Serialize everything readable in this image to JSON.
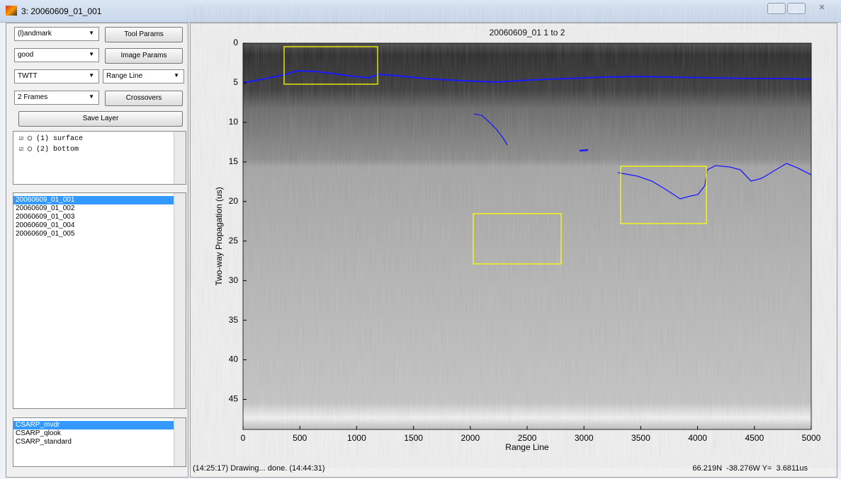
{
  "window": {
    "title": "3: 20060609_01_001"
  },
  "controls": {
    "mode": "(l)andmark",
    "quality": "good",
    "units": "TWTT",
    "frames": "2 Frames",
    "x_axis": "Range Line",
    "buttons": [
      "Tool Params",
      "Image Params",
      "Crossovers",
      "Save Layer"
    ]
  },
  "layers": [
    "(1) surface",
    "(2) bottom"
  ],
  "frame_list": [
    "20060609_01_001",
    "20060609_01_002",
    "20060609_01_003",
    "20060609_01_004",
    "20060609_01_005"
  ],
  "image_list": [
    "CSARP_mvdr",
    "CSARP_qlook",
    "CSARP_standard"
  ],
  "chart_data": {
    "type": "image",
    "title": "20060609_01 1 to 2",
    "x_label": "Range Line",
    "y_label": "Two-way Propagation (us)",
    "xlim": [
      0,
      5000
    ],
    "ylim": [
      0,
      48.8
    ],
    "xticks": [
      0,
      500,
      1000,
      1500,
      2000,
      2500,
      3000,
      3500,
      4000,
      4500,
      5000
    ],
    "yticks": [
      0,
      5,
      10,
      15,
      20,
      25,
      30,
      35,
      40,
      45
    ]
  },
  "status": {
    "message": "(14:25:17) Drawing... done. (14:44:31)",
    "position": "66.219N  -38.276W Y=  3.6811us"
  }
}
